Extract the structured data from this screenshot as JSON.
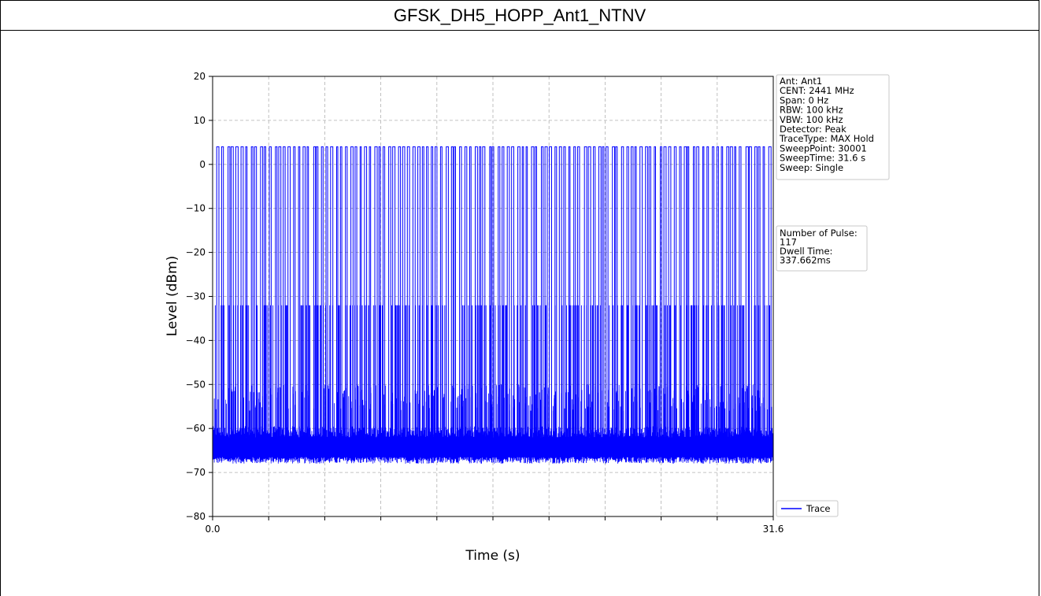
{
  "title": "GFSK_DH5_HOPP_Ant1_NTNV",
  "chart_data": {
    "type": "line",
    "xlabel": "Time (s)",
    "ylabel": "Level (dBm)",
    "xlim": [
      0.0,
      31.6
    ],
    "ylim": [
      -80,
      20
    ],
    "x_tick_labels": [
      "0.0",
      "31.6"
    ],
    "y_ticks": [
      20,
      10,
      0,
      -10,
      -20,
      -30,
      -40,
      -50,
      -60,
      -70,
      -80
    ],
    "grid": true,
    "series": [
      {
        "name": "Trace",
        "color": "#0000ff",
        "noise_floor_dbm": [
          -68,
          -61
        ],
        "pulse_peak_dbm": 4,
        "secondary_level_dbm": -32,
        "number_of_pulses": 117
      }
    ],
    "legend": {
      "position": "bottom-right",
      "entries": [
        "Trace"
      ]
    }
  },
  "info_box": [
    "Ant: Ant1",
    "CENT: 2441 MHz",
    "Span: 0 Hz",
    "RBW: 100 kHz",
    "VBW: 100 kHz",
    "Detector: Peak",
    "TraceType: MAX Hold",
    "SweepPoint: 30001",
    "SweepTime: 31.6 s",
    "Sweep: Single"
  ],
  "result_box": [
    "Number of Pulse:",
    " 117",
    "Dwell Time:",
    " 337.662ms"
  ]
}
